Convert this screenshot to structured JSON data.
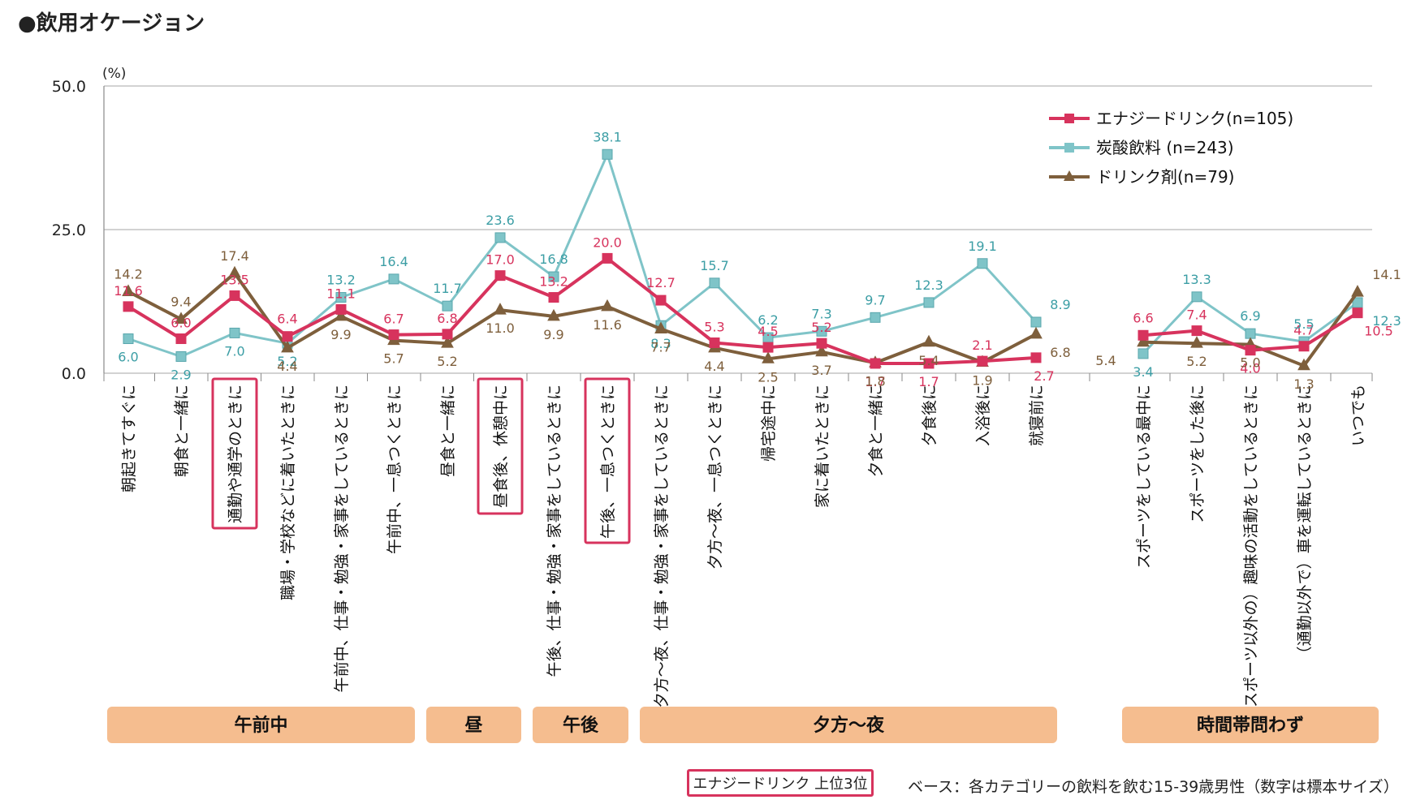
{
  "title": "●飲用オケージョン",
  "footnote": "ベース：各カテゴリーの飲料を飲む15-39歳男性（数字は標本サイズ）",
  "top3_legend": "エナジードリンク 上位3位",
  "colors": {
    "energy": "#d7335d",
    "soda": "#7fc4c8",
    "drink": "#7e5f3c",
    "band": "#f5bd8f",
    "box": "#d7335d"
  },
  "chart_data": {
    "type": "line",
    "unit": "(%)",
    "ylim": [
      0,
      50
    ],
    "yticks": [
      "0.0",
      "25.0",
      "50.0"
    ],
    "grid": true,
    "legend_position": "top-right",
    "categories": [
      "朝起きてすぐに",
      "朝食と一緒に",
      "通勤や通学のときに",
      "職場・学校などに着いたときに",
      "午前中、仕事・勉強・家事をしているときに",
      "午前中、一息つくときに",
      "昼食と一緒に",
      "昼食後、休憩中に",
      "午後、仕事・勉強・家事をしているときに",
      "午後、一息つくときに",
      "夕方～夜、仕事・勉強・家事をしているときに",
      "夕方～夜、一息つくときに",
      "帰宅途中に",
      "家に着いたときに",
      "夕食と一緒に",
      "夕食後に",
      "入浴後に",
      "就寝前に",
      "スポーツをしている最中に",
      "スポーツをした後に",
      "（スポーツ以外の）趣味の活動をしているときに",
      "（通勤以外で）車を運転しているときに",
      "いつでも"
    ],
    "highlighted": [
      2,
      7,
      9
    ],
    "series": [
      {
        "name": "エナジードリンク(n=105)",
        "marker": "square",
        "values": [
          11.6,
          6.0,
          13.5,
          6.4,
          11.1,
          6.7,
          6.8,
          17.0,
          13.2,
          20.0,
          12.7,
          5.3,
          4.5,
          5.2,
          1.7,
          1.7,
          2.1,
          2.7,
          6.6,
          7.4,
          4.0,
          4.7,
          10.5
        ],
        "labels": [
          "11.6",
          "6.0",
          "13.5",
          "6.4",
          "11.1",
          "6.7",
          "6.8",
          "17.0",
          "13.2",
          "20.0",
          "12.7",
          "5.3",
          "4.5",
          "5.2",
          "1.7",
          "1.7",
          "2.1",
          "2.7",
          "6.6",
          "7.4",
          "4.0",
          "4.7",
          "10.5"
        ]
      },
      {
        "name": "炭酸飲料 (n=243)",
        "marker": "square",
        "values": [
          6.0,
          2.9,
          7.0,
          5.2,
          13.2,
          16.4,
          11.7,
          23.6,
          16.8,
          38.1,
          8.3,
          15.7,
          6.2,
          7.3,
          9.7,
          12.3,
          19.1,
          8.9,
          3.4,
          13.3,
          6.9,
          5.5,
          12.3
        ],
        "labels": [
          "6.0",
          "2.9",
          "7.0",
          "5.2",
          "13.2",
          "16.4",
          "11.7",
          "23.6",
          "16.8",
          "38.1",
          "8.3",
          "15.7",
          "6.2",
          "7.3",
          "9.7",
          "12.3",
          "19.1",
          "8.9",
          "3.4",
          "13.3",
          "6.9",
          "5.5",
          "12.3"
        ]
      },
      {
        "name": "ドリンク剤(n=79)",
        "marker": "triangle",
        "values": [
          14.2,
          9.4,
          17.4,
          4.4,
          9.9,
          5.7,
          5.2,
          11.0,
          9.9,
          11.6,
          7.7,
          4.4,
          2.5,
          3.7,
          1.8,
          5.4,
          1.9,
          6.8,
          5.4,
          5.2,
          5.0,
          1.3,
          14.1
        ],
        "labels": [
          "14.2",
          "9.4",
          "17.4",
          "4.4",
          "9.9",
          "5.7",
          "5.2",
          "11.0",
          "9.9",
          "11.6",
          "7.7",
          "4.4",
          "2.5",
          "3.7",
          "1.8",
          "5.4",
          "1.9",
          "6.8",
          "5.4",
          "5.2",
          "5.0",
          "1.3",
          "14.1"
        ]
      }
    ],
    "bands": [
      {
        "label": "午前中",
        "from": 0,
        "to": 5
      },
      {
        "label": "昼",
        "from": 6,
        "to": 7
      },
      {
        "label": "午後",
        "from": 8,
        "to": 9
      },
      {
        "label": "夕方～夜",
        "from": 10,
        "to": 17
      },
      {
        "label": "時間帯問わず",
        "from": 18,
        "to": 22
      }
    ]
  }
}
